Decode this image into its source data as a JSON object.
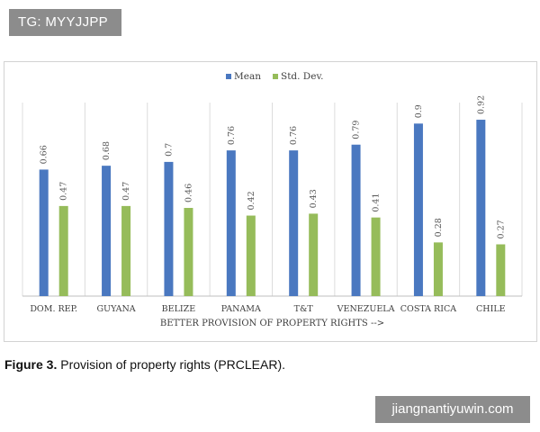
{
  "watermark_top": "TG: MYYJJPP",
  "watermark_bottom": "jiangnantiyuwin.com",
  "caption": {
    "label": "Figure 3.",
    "text": "Provision of property rights (PRCLEAR)."
  },
  "colors": {
    "mean": "#4a78c0",
    "std": "#96bc5a",
    "grid": "#dcdcdc",
    "axis_text": "#404040"
  },
  "chart_data": {
    "type": "bar",
    "xlabel": "BETTER PROVISION OF PROPERTY RIGHTS -->",
    "categories": [
      "DOM. REP.",
      "GUYANA",
      "BELIZE",
      "PANAMA",
      "T&T",
      "VENEZUELA",
      "COSTA RICA",
      "CHILE"
    ],
    "series": [
      {
        "name": "Mean",
        "values": [
          0.66,
          0.68,
          0.7,
          0.76,
          0.76,
          0.79,
          0.9,
          0.92
        ],
        "labels": [
          "0.66",
          "0.68",
          "0.7",
          "0.76",
          "0.76",
          "0.79",
          "0.9",
          "0.92"
        ]
      },
      {
        "name": "Std. Dev.",
        "values": [
          0.47,
          0.47,
          0.46,
          0.42,
          0.43,
          0.41,
          0.28,
          0.27
        ],
        "labels": [
          "0.47",
          "0.47",
          "0.46",
          "0.42",
          "0.43",
          "0.41",
          "0.28",
          "0.27"
        ]
      }
    ],
    "ylim": [
      0,
      1
    ],
    "legend_position": "top-center",
    "grid": "vertical-category-separators"
  }
}
